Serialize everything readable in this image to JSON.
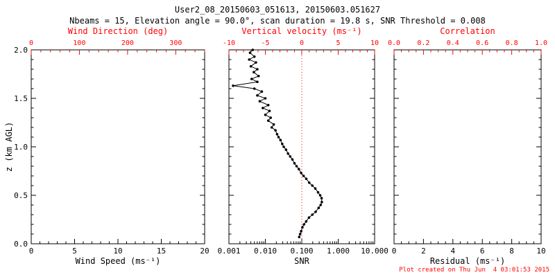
{
  "header": {
    "title": "User2_08_20150603_051613, 20150603.051627",
    "subtitle": "Nbeams = 15, Elevation angle = 90.0°, scan duration = 19.8 s, SNR Threshold = 0.008"
  },
  "footer": {
    "credit": "Plot created on Thu Jun  4 03:01:53 2015"
  },
  "colors": {
    "background": "#ffffff",
    "primary_axis": "#000000",
    "secondary_axis": "#ff0000",
    "series": "#000000",
    "reference_line": "#ff0000"
  },
  "chart_data": [
    {
      "type": "line",
      "panel": "wind-speed",
      "xlabel": "Wind Speed (ms⁻¹)",
      "xlim": [
        0,
        20
      ],
      "xticks": [
        0,
        5,
        10,
        15,
        20
      ],
      "xtick_labels": [
        "0",
        "5",
        "10",
        "15",
        "20"
      ],
      "minor_step": 1,
      "top": {
        "label": "Wind Direction (deg)",
        "lim": [
          0,
          360
        ],
        "ticks": [
          0,
          100,
          200,
          300
        ],
        "labels": [
          "0",
          "100",
          "200",
          "300"
        ],
        "minor_step": 20
      },
      "ylabel": "z (km AGL)",
      "ylim": [
        0,
        2
      ],
      "yticks": [
        0,
        0.5,
        1,
        1.5,
        2
      ],
      "ytick_labels": [
        "0.0",
        "0.5",
        "1.0",
        "1.5",
        "2.0"
      ],
      "grid": false,
      "series": []
    },
    {
      "type": "line",
      "panel": "snr",
      "xlabel": "SNR",
      "xscale": "log",
      "xlim": [
        0.001,
        10
      ],
      "xticks": [
        0.001,
        0.01,
        0.1,
        1,
        10
      ],
      "xtick_labels": [
        "0.001",
        "0.010",
        "0.100",
        "1.000",
        "10.000"
      ],
      "top": {
        "label": "Vertical velocity (ms⁻¹)",
        "lim": [
          -10,
          10
        ],
        "ticks": [
          -10,
          -5,
          0,
          5,
          10
        ],
        "labels": [
          "-10",
          "-5",
          "0",
          "5",
          "10"
        ],
        "minor_step": 1
      },
      "ylim": [
        0,
        2
      ],
      "reference_line_x": 0.1,
      "grid": false,
      "series": [
        {
          "name": "snr-profile",
          "marker": "dot",
          "x": [
            0.085,
            0.09,
            0.096,
            0.104,
            0.115,
            0.132,
            0.158,
            0.195,
            0.24,
            0.29,
            0.33,
            0.355,
            0.35,
            0.32,
            0.28,
            0.235,
            0.195,
            0.16,
            0.133,
            0.112,
            0.096,
            0.083,
            0.072,
            0.063,
            0.055,
            0.048,
            0.042,
            0.037,
            0.032,
            0.029,
            0.026,
            0.023,
            0.021,
            0.019,
            0.015,
            0.017,
            0.012,
            0.014,
            0.01,
            0.013,
            0.0085,
            0.012,
            0.007,
            0.01,
            0.006,
            0.008,
            0.005,
            0.0013,
            0.006,
            0.0042,
            0.0065,
            0.0048,
            0.006,
            0.004,
            0.0055,
            0.0036,
            0.005,
            0.0038,
            0.0045
          ],
          "z": [
            0.07,
            0.1,
            0.13,
            0.17,
            0.2,
            0.23,
            0.27,
            0.3,
            0.33,
            0.37,
            0.4,
            0.43,
            0.47,
            0.5,
            0.53,
            0.57,
            0.6,
            0.63,
            0.67,
            0.7,
            0.73,
            0.77,
            0.8,
            0.83,
            0.87,
            0.9,
            0.93,
            0.97,
            1.0,
            1.03,
            1.07,
            1.1,
            1.13,
            1.17,
            1.2,
            1.23,
            1.27,
            1.3,
            1.33,
            1.37,
            1.4,
            1.43,
            1.47,
            1.5,
            1.53,
            1.57,
            1.6,
            1.63,
            1.67,
            1.7,
            1.73,
            1.77,
            1.8,
            1.83,
            1.87,
            1.9,
            1.93,
            1.97,
            2.0
          ]
        }
      ]
    },
    {
      "type": "line",
      "panel": "residual",
      "xlabel": "Residual (ms⁻¹)",
      "xlim": [
        0,
        10
      ],
      "xticks": [
        0,
        2,
        4,
        6,
        8,
        10
      ],
      "xtick_labels": [
        "0",
        "2",
        "4",
        "6",
        "8",
        "10"
      ],
      "minor_step": 0.5,
      "top": {
        "label": "Correlation",
        "lim": [
          0,
          1
        ],
        "ticks": [
          0,
          0.2,
          0.4,
          0.6,
          0.8,
          1.0
        ],
        "labels": [
          "0.0",
          "0.2",
          "0.4",
          "0.6",
          "0.8",
          "1.0"
        ],
        "minor_step": 0.05
      },
      "ylim": [
        0,
        2
      ],
      "grid": false,
      "series": []
    }
  ]
}
